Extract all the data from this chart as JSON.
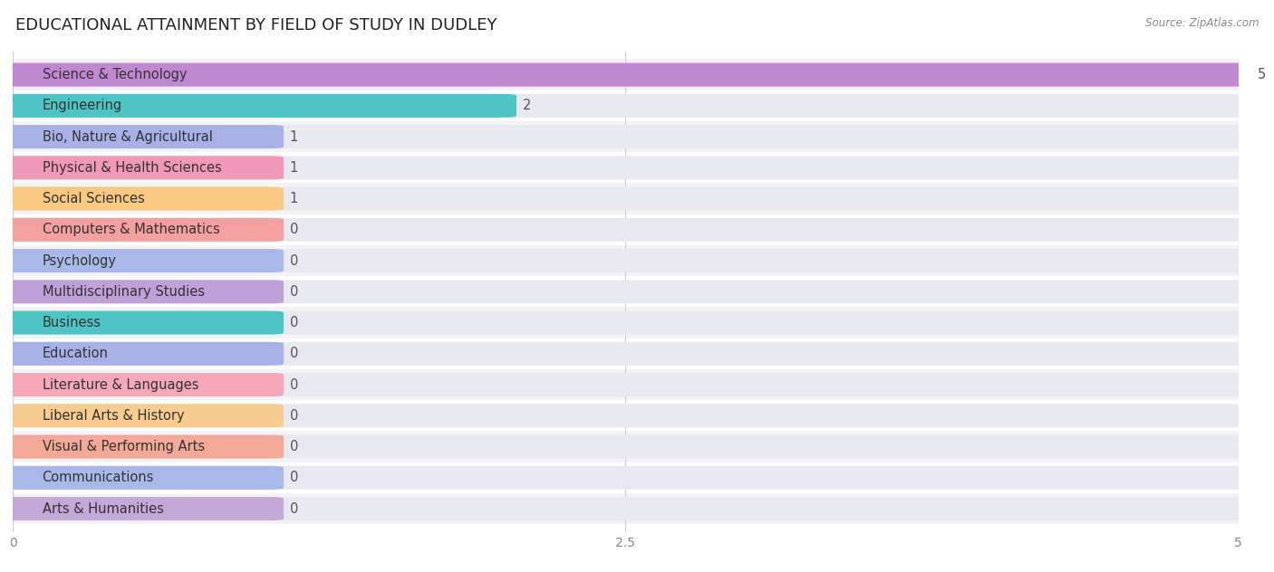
{
  "title": "EDUCATIONAL ATTAINMENT BY FIELD OF STUDY IN DUDLEY",
  "source": "Source: ZipAtlas.com",
  "categories": [
    "Science & Technology",
    "Engineering",
    "Bio, Nature & Agricultural",
    "Physical & Health Sciences",
    "Social Sciences",
    "Computers & Mathematics",
    "Psychology",
    "Multidisciplinary Studies",
    "Business",
    "Education",
    "Literature & Languages",
    "Liberal Arts & History",
    "Visual & Performing Arts",
    "Communications",
    "Arts & Humanities"
  ],
  "values": [
    5,
    2,
    1,
    1,
    1,
    0,
    0,
    0,
    0,
    0,
    0,
    0,
    0,
    0,
    0
  ],
  "bar_colors": [
    "#c088d0",
    "#4ec4c4",
    "#a8b0e8",
    "#f098b8",
    "#f8c880",
    "#f4a0a0",
    "#a8b8e8",
    "#c0a0d8",
    "#4ec4c4",
    "#a8b0e8",
    "#f4a8b8",
    "#f8cc90",
    "#f4a898",
    "#a8b8e8",
    "#c4a8d8"
  ],
  "xlim": [
    0,
    5
  ],
  "xticks": [
    0,
    2.5,
    5
  ],
  "background_color": "#ffffff",
  "bar_bg_color": "#e8e8f0",
  "min_bar_width": 1.05,
  "title_fontsize": 13,
  "label_fontsize": 10.5,
  "value_fontsize": 10.5
}
